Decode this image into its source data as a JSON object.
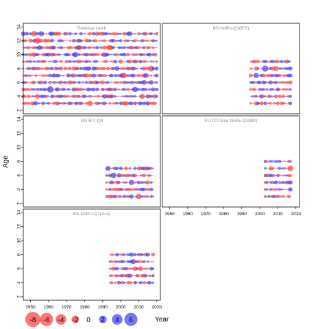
{
  "chart_data": {
    "type": "scatter",
    "subtype": "bubble-residuals",
    "ylabel": "Age",
    "xlabel": "Year",
    "xlim": [
      1946,
      2022
    ],
    "ylim": [
      1.5,
      14.5
    ],
    "xticks": [
      1950,
      1960,
      1970,
      1980,
      1990,
      2000,
      2010,
      2020
    ],
    "yticks": [
      2,
      4,
      6,
      8,
      10,
      12,
      14
    ],
    "colors": {
      "positive": "#4040ff",
      "negative": "#ff4040"
    },
    "panels": [
      {
        "title": "Residual catch",
        "year_start": 1946,
        "year_end": 2020,
        "ages": [
          3,
          4,
          5,
          6,
          7,
          8,
          9,
          10,
          11,
          12,
          13
        ],
        "seed": 11
      },
      {
        "title": "BS-NoRu-Q1(BTr)",
        "year_start": 1995,
        "year_end": 2017,
        "ages": [
          3,
          4,
          5,
          6,
          7,
          8,
          9
        ],
        "seed": 23
      },
      {
        "title": "RU-BTr-Q4",
        "year_start": 1992,
        "year_end": 2018,
        "ages": [
          3,
          4,
          5,
          6,
          7
        ],
        "seed": 37
      },
      {
        "title": "FLT007:Eco-NoRu-Q3(Btr)",
        "year_start": 2003,
        "year_end": 2017,
        "ages": [
          3,
          4,
          5,
          6,
          7,
          8
        ],
        "seed": 41
      },
      {
        "title": "BS-NoRU-Q1(Aco)",
        "year_start": 1994,
        "year_end": 2018,
        "ages": [
          4,
          5,
          6,
          7,
          8
        ],
        "seed": 53
      }
    ],
    "legend": {
      "values": [
        -8,
        -6,
        -4,
        -2,
        0,
        2,
        4,
        6
      ],
      "labels": [
        "-8",
        "-6",
        "-4",
        "-2",
        "0",
        "2",
        "4",
        "6"
      ]
    }
  }
}
